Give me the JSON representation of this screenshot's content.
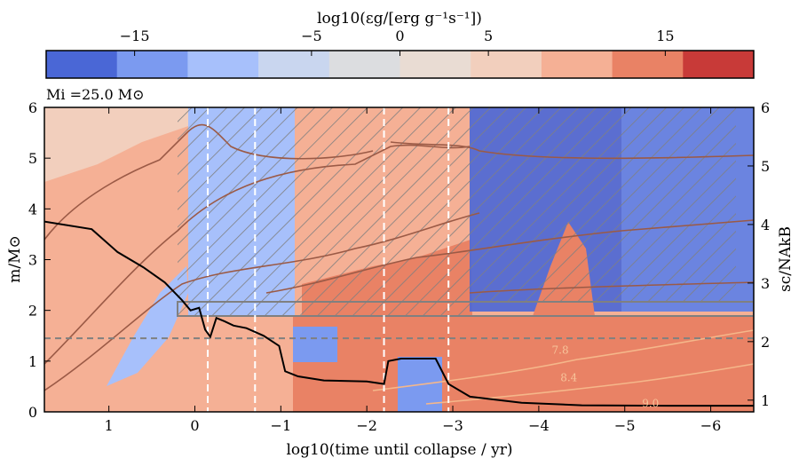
{
  "chart_data": {
    "type": "heatmap",
    "colorbar": {
      "label": "log10(εg/[erg g⁻¹s⁻¹])",
      "range": [
        -20,
        20
      ],
      "ticks": [
        -15,
        -5,
        0,
        5,
        15
      ],
      "tick_labels": [
        "−15",
        "−5",
        "0",
        "5",
        "15"
      ],
      "bins": [
        {
          "from": -20,
          "to": -16,
          "color": "#4a67d6"
        },
        {
          "from": -16,
          "to": -12,
          "color": "#7b9af0"
        },
        {
          "from": -12,
          "to": -8,
          "color": "#a7c0fb"
        },
        {
          "from": -8,
          "to": -4,
          "color": "#c9d6ef"
        },
        {
          "from": -4,
          "to": 0,
          "color": "#dcdde0"
        },
        {
          "from": 0,
          "to": 4,
          "color": "#e9dcd3"
        },
        {
          "from": 4,
          "to": 8,
          "color": "#f2cfbd"
        },
        {
          "from": 8,
          "to": 12,
          "color": "#f5b095"
        },
        {
          "from": 12,
          "to": 16,
          "color": "#e98265"
        },
        {
          "from": 16,
          "to": 20,
          "color": "#c83a38"
        }
      ]
    },
    "annotation": "Mi =25.0 M⊙",
    "xlabel": "log10(time until collapse / yr)",
    "ylabel": "m/M⊙",
    "y2label": "sc/NAkB",
    "xlim": [
      1.75,
      -6.5
    ],
    "ylim": [
      0,
      6
    ],
    "y2lim": [
      0.8,
      6.0
    ],
    "xticks": [
      1,
      0,
      -1,
      -2,
      -3,
      -4,
      -5,
      -6
    ],
    "xtick_labels": [
      "1",
      "0",
      "−1",
      "−2",
      "−3",
      "−4",
      "−5",
      "−6"
    ],
    "yticks": [
      0,
      1,
      2,
      3,
      4,
      5,
      6
    ],
    "y2ticks": [
      1,
      2,
      3,
      4,
      5,
      6
    ],
    "vertical_lines": [
      -0.15,
      -0.7,
      -2.2,
      -2.95
    ],
    "horizontal_line": 1.45,
    "contour_labels": [
      {
        "text": "7.8",
        "x": -4.25,
        "y": 1.15
      },
      {
        "text": "8.4",
        "x": -4.35,
        "y": 0.6
      },
      {
        "text": "9.0",
        "x": -5.3,
        "y": 0.1
      }
    ],
    "series": [
      {
        "x": [
          1.75,
          1.2,
          0.9,
          0.6,
          0.35,
          0.15,
          0.05,
          -0.05,
          -0.12,
          -0.18,
          -0.25,
          -0.35,
          -0.45,
          -0.6,
          -0.8,
          -0.98,
          -1.05,
          -1.2,
          -1.5,
          -2.0,
          -2.2,
          -2.25,
          -2.4,
          -2.8,
          -2.95,
          -3.2,
          -3.8,
          -4.5,
          -5.5,
          -6.5
        ],
        "y": [
          3.75,
          3.6,
          3.15,
          2.85,
          2.55,
          2.2,
          2.0,
          2.05,
          1.62,
          1.48,
          1.85,
          1.78,
          1.7,
          1.65,
          1.5,
          1.3,
          0.8,
          0.7,
          0.62,
          0.6,
          0.55,
          1.0,
          1.05,
          1.05,
          0.55,
          0.3,
          0.18,
          0.13,
          0.12,
          0.12
        ]
      }
    ]
  }
}
